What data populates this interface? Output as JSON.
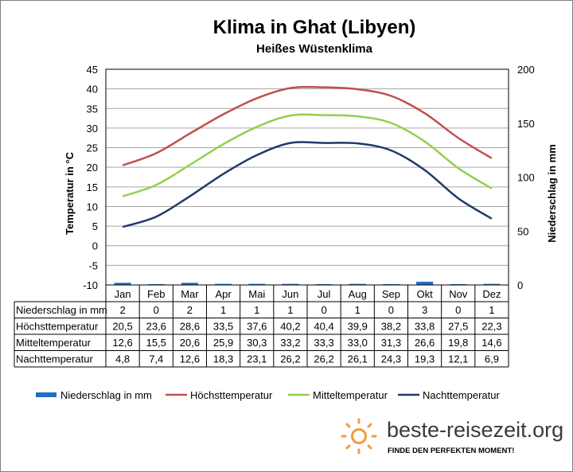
{
  "chart_data": {
    "type": "line",
    "title": "Klima in Ghat (Libyen)",
    "subtitle": "Heißes Wüstenklima",
    "ylabel": "Temperatur in °C",
    "y2label": "Niederschlag in mm",
    "ylim": [
      -10,
      45
    ],
    "yticks": [
      -10,
      -5,
      0,
      5,
      10,
      15,
      20,
      25,
      30,
      35,
      40,
      45
    ],
    "y2lim": [
      0,
      200
    ],
    "y2ticks": [
      0,
      50,
      100,
      150,
      200
    ],
    "grid": true,
    "legend_position": "bottom",
    "categories": [
      "Jan",
      "Feb",
      "Mar",
      "Apr",
      "Mai",
      "Jun",
      "Jul",
      "Aug",
      "Sep",
      "Okt",
      "Nov",
      "Dez"
    ],
    "precipitation": {
      "name": "Niederschlag in mm",
      "type": "bar",
      "axis": "right",
      "color": "#1f6fc5",
      "values": [
        2,
        0,
        2,
        1,
        1,
        1,
        0,
        1,
        0,
        3,
        0,
        1
      ]
    },
    "series": [
      {
        "name": "Höchsttemperatur",
        "color": "#c0504d",
        "values": [
          20.5,
          23.6,
          28.6,
          33.5,
          37.6,
          40.2,
          40.4,
          39.9,
          38.2,
          33.8,
          27.5,
          22.3
        ]
      },
      {
        "name": "Mitteltemperatur",
        "color": "#92d050",
        "values": [
          12.6,
          15.5,
          20.6,
          25.9,
          30.3,
          33.2,
          33.3,
          33.0,
          31.3,
          26.6,
          19.8,
          14.6
        ]
      },
      {
        "name": "Nachttemperatur",
        "color": "#1f3a68",
        "values": [
          4.8,
          7.4,
          12.6,
          18.3,
          23.1,
          26.2,
          26.2,
          26.1,
          24.3,
          19.3,
          12.1,
          6.9
        ]
      }
    ],
    "table": {
      "rows": [
        {
          "label": "Niederschlag in mm",
          "values": [
            "2",
            "0",
            "2",
            "1",
            "1",
            "1",
            "0",
            "1",
            "0",
            "3",
            "0",
            "1"
          ]
        },
        {
          "label": "Höchsttemperatur",
          "values": [
            "20,5",
            "23,6",
            "28,6",
            "33,5",
            "37,6",
            "40,2",
            "40,4",
            "39,9",
            "38,2",
            "33,8",
            "27,5",
            "22,3"
          ]
        },
        {
          "label": "Mitteltemperatur",
          "values": [
            "12,6",
            "15,5",
            "20,6",
            "25,9",
            "30,3",
            "33,2",
            "33,3",
            "33,0",
            "31,3",
            "26,6",
            "19,8",
            "14,6"
          ]
        },
        {
          "label": "Nachttemperatur",
          "values": [
            "4,8",
            "7,4",
            "12,6",
            "18,3",
            "23,1",
            "26,2",
            "26,2",
            "26,1",
            "24,3",
            "19,3",
            "12,1",
            "6,9"
          ]
        }
      ]
    }
  },
  "branding": {
    "name": "beste-reisezeit.org",
    "slogan": "FINDE DEN PERFEKTEN MOMENT!",
    "logo_icon": "sun-icon",
    "logo_color": "#f39b3c"
  }
}
